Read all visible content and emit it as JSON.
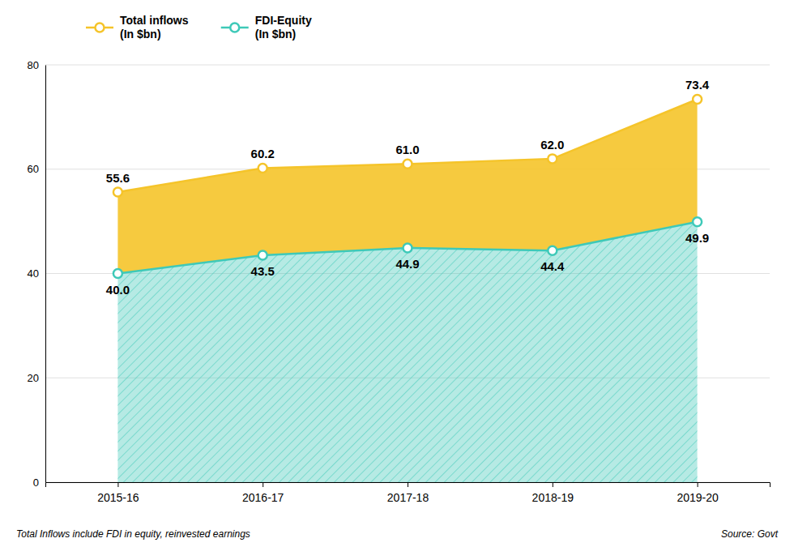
{
  "chart_data": {
    "type": "area",
    "categories": [
      "2015-16",
      "2016-17",
      "2017-18",
      "2018-19",
      "2019-20"
    ],
    "series": [
      {
        "name": "Total inflows\n(In $bn)",
        "color": "#F5C42A",
        "marker": "circle",
        "values": [
          55.6,
          60.2,
          61.0,
          62.0,
          73.4
        ],
        "value_labels": [
          "55.6",
          "60.2",
          "61.0",
          "62.0",
          "73.4"
        ]
      },
      {
        "name": "FDI-Equity\n(In $bn)",
        "color": "#3EC9B8",
        "marker": "circle",
        "values": [
          40.0,
          43.5,
          44.9,
          44.4,
          49.9
        ],
        "value_labels": [
          "40.0",
          "43.5",
          "44.9",
          "44.4",
          "49.9"
        ]
      }
    ],
    "ylim": [
      0,
      80
    ],
    "yticks": [
      0,
      20,
      40,
      60,
      80
    ],
    "grid": true,
    "data_labels": true,
    "legend": "top-left",
    "annotations": [
      "Total Inflows include FDI in equity, reinvested earnings",
      "Source: Govt"
    ]
  }
}
